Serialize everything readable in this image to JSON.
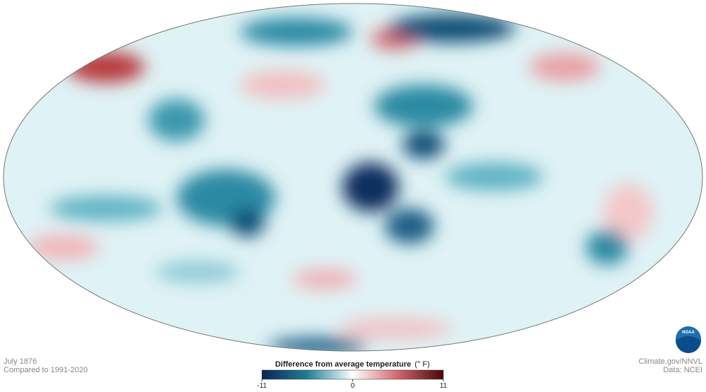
{
  "caption": {
    "date": "July 1876",
    "baseline": "Compared to 1991-2020"
  },
  "credits": {
    "site": "Climate.gov/NNVL",
    "source": "Data: NCEI",
    "logo": "NOAA"
  },
  "legend": {
    "title": "Difference from average temperature",
    "unit": "(° F)",
    "min": -11,
    "max": 11,
    "ticks": [
      -11,
      0,
      11
    ]
  }
}
